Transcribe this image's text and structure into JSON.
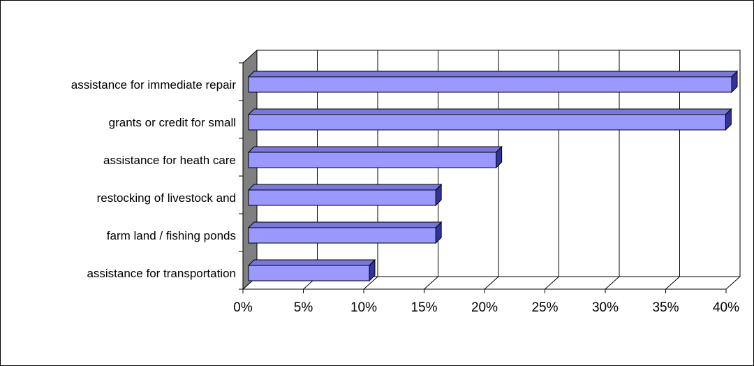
{
  "chart_data": {
    "type": "bar",
    "orientation": "horizontal",
    "three_d": true,
    "categories": [
      "assistance for immediate repair",
      "grants or credit for small",
      "assistance for heath care",
      "restocking of livestock and",
      "farm land / fishing ponds",
      "assistance for transportation"
    ],
    "values": [
      0.4,
      0.395,
      0.205,
      0.155,
      0.155,
      0.1
    ],
    "x_ticks": [
      "0%",
      "5%",
      "10%",
      "15%",
      "20%",
      "25%",
      "30%",
      "35%",
      "40%"
    ],
    "xlim": [
      0,
      0.4
    ],
    "grid": true,
    "legend": "none",
    "title": "",
    "xlabel": "",
    "ylabel": "",
    "colors": {
      "bar_front": "#9999ff",
      "bar_top": "#7777dd",
      "bar_side": "#333399",
      "floor": "#808080",
      "grid": "#000000"
    }
  }
}
